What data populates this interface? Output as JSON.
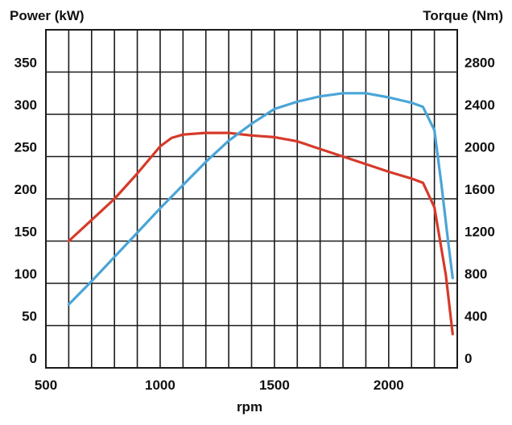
{
  "chart_data": {
    "type": "line",
    "xlabel": "rpm",
    "left_axis_title": "Power (kW)",
    "right_axis_title": "Torque (Nm)",
    "xlim": [
      500,
      2300
    ],
    "y_left_lim": [
      0,
      400
    ],
    "y_right_lim": [
      0,
      3200
    ],
    "x_ticks": [
      500,
      1000,
      1500,
      2000
    ],
    "y_left_ticks": [
      0,
      50,
      100,
      150,
      200,
      250,
      300,
      350
    ],
    "y_right_ticks": [
      0,
      400,
      800,
      1200,
      1600,
      2000,
      2400,
      2800
    ],
    "grid": true,
    "legend": "none",
    "series": [
      {
        "axis": "left",
        "color": "#d63a2a",
        "x": [
          600,
          700,
          800,
          900,
          1000,
          1050,
          1100,
          1200,
          1300,
          1400,
          1500,
          1600,
          1700,
          1800,
          1900,
          2000,
          2050,
          2100,
          2150,
          2200,
          2250,
          2280
        ],
        "y": [
          150,
          175,
          200,
          230,
          262,
          272,
          276,
          278,
          278,
          275,
          273,
          268,
          259,
          250,
          241,
          232,
          228,
          224,
          219,
          190,
          110,
          40
        ]
      },
      {
        "axis": "right",
        "color": "#4aa5d6",
        "x": [
          600,
          700,
          800,
          900,
          1000,
          1100,
          1200,
          1300,
          1400,
          1500,
          1600,
          1700,
          1800,
          1900,
          2000,
          2100,
          2150,
          2200,
          2230,
          2260,
          2280
        ],
        "y": [
          600,
          820,
          1050,
          1280,
          1510,
          1730,
          1950,
          2150,
          2310,
          2450,
          2520,
          2570,
          2600,
          2600,
          2560,
          2510,
          2470,
          2250,
          1750,
          1200,
          850
        ]
      }
    ]
  }
}
